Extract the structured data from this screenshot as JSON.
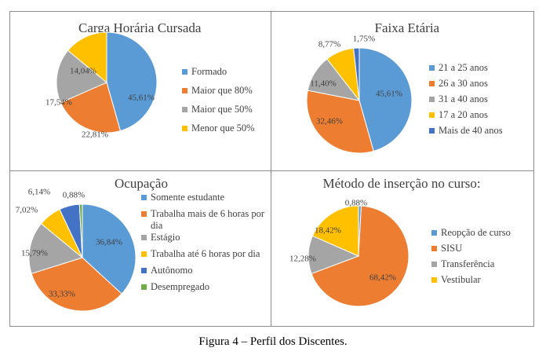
{
  "caption": "Figura 4 – Perfil dos Discentes.",
  "colors": {
    "blue": "#5b9bd5",
    "orange": "#ed7d31",
    "gray": "#a5a5a5",
    "yellow": "#ffc000",
    "darkblue": "#4472c4",
    "green": "#70ad47"
  },
  "chart_data": [
    {
      "type": "pie",
      "title": "Carga Horária Cursada",
      "categories": [
        "Formado",
        "Maior que 80%",
        "Maior que 50%",
        "Menor que 50%"
      ],
      "values": [
        45.61,
        22.81,
        17.54,
        14.04
      ],
      "labels": [
        "45,61%",
        "22,81%",
        "17,54%",
        "14,04%"
      ],
      "colors": [
        "#5b9bd5",
        "#ed7d31",
        "#a5a5a5",
        "#ffc000"
      ],
      "legend": "right"
    },
    {
      "type": "pie",
      "title": "Faixa Etária",
      "categories": [
        "21 a 25 anos",
        "26 a 30 anos",
        "31 a 40 anos",
        "17 a 20 anos",
        "Mais de 40 anos"
      ],
      "values": [
        45.61,
        32.46,
        11.4,
        8.77,
        1.75
      ],
      "labels": [
        "45,61%",
        "32,46%",
        "11,40%",
        "8,77%",
        "1,75%"
      ],
      "colors": [
        "#5b9bd5",
        "#ed7d31",
        "#a5a5a5",
        "#ffc000",
        "#4472c4"
      ],
      "legend": "right"
    },
    {
      "type": "pie",
      "title": "Ocupação",
      "categories": [
        "Somente estudante",
        "Trabalha mais de 6 horas por dia",
        "Estágio",
        "Trabalha até 6 horas por dia",
        "Autônomo",
        "Desempregado"
      ],
      "values": [
        36.84,
        33.33,
        15.79,
        7.02,
        6.14,
        0.88
      ],
      "labels": [
        "36,84%",
        "33,33%",
        "15,79%",
        "7,02%",
        "6,14%",
        "0,88%"
      ],
      "colors": [
        "#5b9bd5",
        "#ed7d31",
        "#a5a5a5",
        "#ffc000",
        "#4472c4",
        "#70ad47"
      ],
      "legend": "right"
    },
    {
      "type": "pie",
      "title": "Método de inserção no curso:",
      "categories": [
        "Reopção de curso",
        "SISU",
        "Transferência",
        "Vestibular"
      ],
      "values": [
        0.88,
        68.42,
        12.28,
        18.42
      ],
      "labels": [
        "0,88%",
        "68,42%",
        "12,28%",
        "18,42%"
      ],
      "colors": [
        "#5b9bd5",
        "#ed7d31",
        "#a5a5a5",
        "#ffc000"
      ],
      "legend": "right"
    }
  ]
}
